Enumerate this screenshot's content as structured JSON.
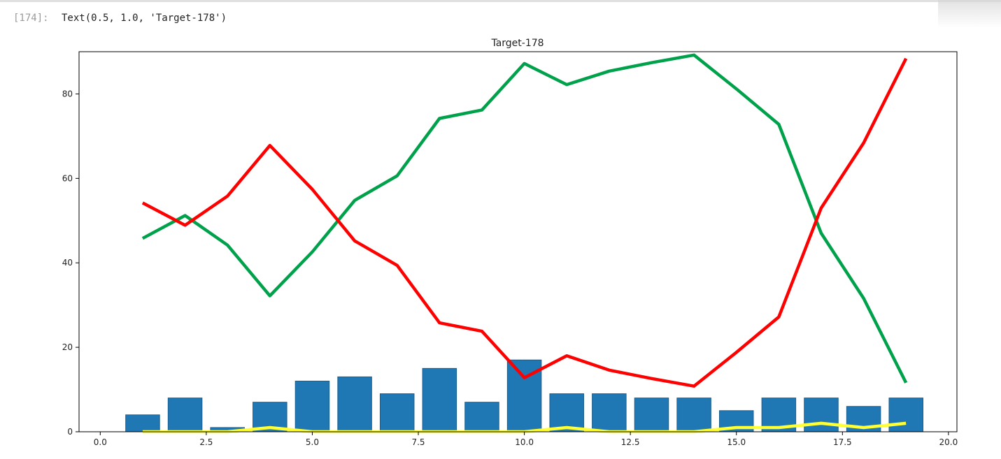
{
  "cell": {
    "prompt": "[174]:",
    "output": "Text(0.5, 1.0, 'Target-178')"
  },
  "chart_data": {
    "type": "bar",
    "title": "Target-178",
    "xlabel": "",
    "ylabel": "",
    "xlim": [
      -0.5,
      20.2
    ],
    "ylim": [
      0,
      90
    ],
    "xticks": [
      0.0,
      2.5,
      5.0,
      7.5,
      10.0,
      12.5,
      15.0,
      17.5,
      20.0
    ],
    "xtick_labels": [
      "0.0",
      "2.5",
      "5.0",
      "7.5",
      "10.0",
      "12.5",
      "15.0",
      "17.5",
      "20.0"
    ],
    "yticks": [
      0,
      20,
      40,
      60,
      80
    ],
    "ytick_labels": [
      "0",
      "20",
      "40",
      "60",
      "80"
    ],
    "grid": false,
    "bars": {
      "color": "#1f77b4",
      "x": [
        1,
        2,
        3,
        4,
        5,
        6,
        7,
        8,
        9,
        10,
        11,
        12,
        13,
        14,
        15,
        16,
        17,
        18,
        19
      ],
      "values": [
        4,
        8,
        1,
        7,
        12,
        13,
        9,
        15,
        7,
        17,
        9,
        9,
        8,
        8,
        5,
        8,
        8,
        6,
        8
      ]
    },
    "series": [
      {
        "color": "#00a14b",
        "x": [
          1,
          2,
          3,
          4,
          5,
          6,
          7,
          8,
          9,
          10,
          11,
          12,
          13,
          14,
          15,
          16,
          17,
          18,
          19
        ],
        "values": [
          45.8,
          51.2,
          44.2,
          32.2,
          42.6,
          54.8,
          60.6,
          74.2,
          76.2,
          87.2,
          82.2,
          85.4,
          87.4,
          89.2,
          81.2,
          72.8,
          47.0,
          31.6,
          11.6
        ]
      },
      {
        "color": "#ff0000",
        "x": [
          1,
          2,
          3,
          4,
          5,
          6,
          7,
          8,
          9,
          10,
          11,
          12,
          13,
          14,
          15,
          16,
          17,
          18,
          19
        ],
        "values": [
          54.2,
          48.9,
          55.8,
          67.8,
          57.4,
          45.2,
          39.4,
          25.8,
          23.8,
          12.8,
          18.0,
          14.6,
          12.6,
          10.8,
          18.8,
          27.2,
          53.0,
          68.4,
          88.4
        ]
      },
      {
        "color": "#ffff33",
        "x": [
          1,
          2,
          3,
          4,
          5,
          6,
          7,
          8,
          9,
          10,
          11,
          12,
          13,
          14,
          15,
          16,
          17,
          18,
          19
        ],
        "values": [
          0,
          0,
          0,
          1,
          0,
          0,
          0,
          0,
          0,
          0,
          1,
          0,
          0,
          0,
          1,
          1,
          2,
          1,
          2
        ]
      }
    ]
  }
}
